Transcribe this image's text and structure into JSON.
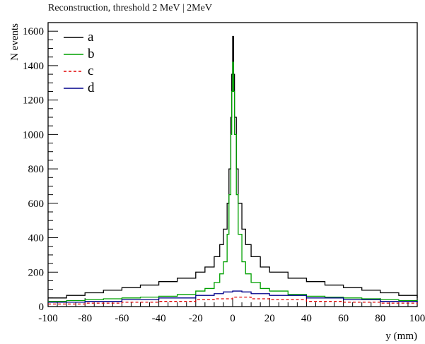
{
  "chart_data": {
    "type": "line",
    "title": "Reconstruction, threshold 2 MeV | 2MeV",
    "xlabel": "y (mm)",
    "ylabel": "N events",
    "xlim": [
      -100,
      100
    ],
    "ylim": [
      0,
      1650
    ],
    "xticks": [
      -100,
      -80,
      -60,
      -40,
      -20,
      0,
      20,
      40,
      60,
      80,
      100
    ],
    "yticks": [
      0,
      200,
      400,
      600,
      800,
      1000,
      1200,
      1400,
      1600
    ],
    "grid": false,
    "legend_position": "top-left",
    "series": [
      {
        "name": "a",
        "color": "#000000",
        "dash": "",
        "x": [
          -100,
          -90,
          -80,
          -70,
          -60,
          -50,
          -40,
          -30,
          -20,
          -15,
          -10,
          -7,
          -5,
          -3,
          -2,
          -1,
          -0.5,
          0,
          0.5,
          1,
          2,
          3,
          5,
          7,
          10,
          15,
          20,
          30,
          40,
          50,
          60,
          70,
          80,
          90,
          100
        ],
        "values": [
          50,
          65,
          80,
          95,
          110,
          125,
          145,
          165,
          200,
          230,
          290,
          360,
          450,
          600,
          800,
          1100,
          1350,
          1570,
          1350,
          1100,
          800,
          600,
          450,
          360,
          290,
          230,
          200,
          165,
          145,
          125,
          110,
          95,
          80,
          65,
          50
        ]
      },
      {
        "name": "b",
        "color": "#00a000",
        "dash": "",
        "x": [
          -100,
          -90,
          -80,
          -70,
          -60,
          -50,
          -40,
          -30,
          -20,
          -15,
          -10,
          -7,
          -5,
          -3,
          -2,
          -1,
          -0.5,
          0,
          0.5,
          1,
          2,
          3,
          5,
          7,
          10,
          15,
          20,
          30,
          40,
          50,
          60,
          70,
          80,
          90,
          100
        ],
        "values": [
          30,
          35,
          40,
          45,
          50,
          55,
          60,
          70,
          90,
          105,
          140,
          190,
          260,
          420,
          650,
          1000,
          1250,
          1420,
          1250,
          1000,
          650,
          420,
          260,
          190,
          140,
          105,
          90,
          70,
          60,
          55,
          50,
          45,
          40,
          35,
          30
        ]
      },
      {
        "name": "c",
        "color": "#e00000",
        "dash": "4 3",
        "x": [
          -100,
          -80,
          -60,
          -40,
          -20,
          -10,
          0,
          10,
          20,
          40,
          60,
          80,
          100
        ],
        "values": [
          15,
          20,
          25,
          30,
          40,
          45,
          55,
          45,
          40,
          30,
          25,
          20,
          15
        ]
      },
      {
        "name": "d",
        "color": "#00008b",
        "dash": "",
        "x": [
          -100,
          -80,
          -60,
          -40,
          -20,
          -10,
          -5,
          0,
          5,
          10,
          20,
          40,
          60,
          80,
          100
        ],
        "values": [
          25,
          30,
          40,
          50,
          65,
          75,
          85,
          90,
          85,
          75,
          65,
          50,
          40,
          30,
          25
        ]
      }
    ]
  }
}
